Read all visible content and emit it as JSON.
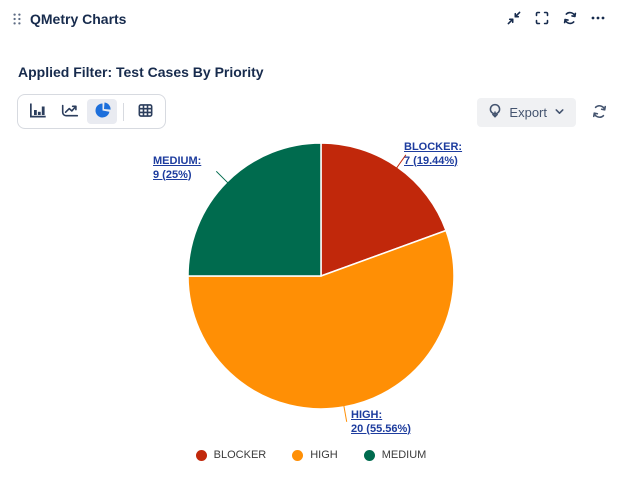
{
  "header": {
    "title": "QMetry Charts",
    "icons": [
      "drag-handle",
      "collapse",
      "fullscreen",
      "refresh",
      "more"
    ]
  },
  "filter": {
    "label": "Applied Filter: Test Cases By Priority"
  },
  "toolbar": {
    "chart_type_icons": [
      {
        "name": "bar-chart",
        "selected": false
      },
      {
        "name": "line-chart",
        "selected": false
      },
      {
        "name": "pie-chart",
        "selected": true
      },
      {
        "name": "table",
        "selected": false
      }
    ]
  },
  "export": {
    "label": "Export",
    "icon": "download",
    "chevron_icon": "chevron-down",
    "refresh_icon": "refresh"
  },
  "chart_data": {
    "type": "pie",
    "title": "",
    "start_angle_deg": 0,
    "direction": "clockwise",
    "legend_position": "bottom",
    "series": [
      {
        "name": "BLOCKER",
        "value": 7,
        "percent": 19.44,
        "color": "#c1280b",
        "label_line1": "BLOCKER:",
        "label_line2": "7 (19.44%)"
      },
      {
        "name": "HIGH",
        "value": 20,
        "percent": 55.56,
        "color": "#ff8f05",
        "label_line1": "HIGH:",
        "label_line2": "20 (55.56%)"
      },
      {
        "name": "MEDIUM",
        "value": 9,
        "percent": 25.0,
        "color": "#006b4e",
        "label_line1": "MEDIUM:",
        "label_line2": "9 (25%)"
      }
    ]
  }
}
